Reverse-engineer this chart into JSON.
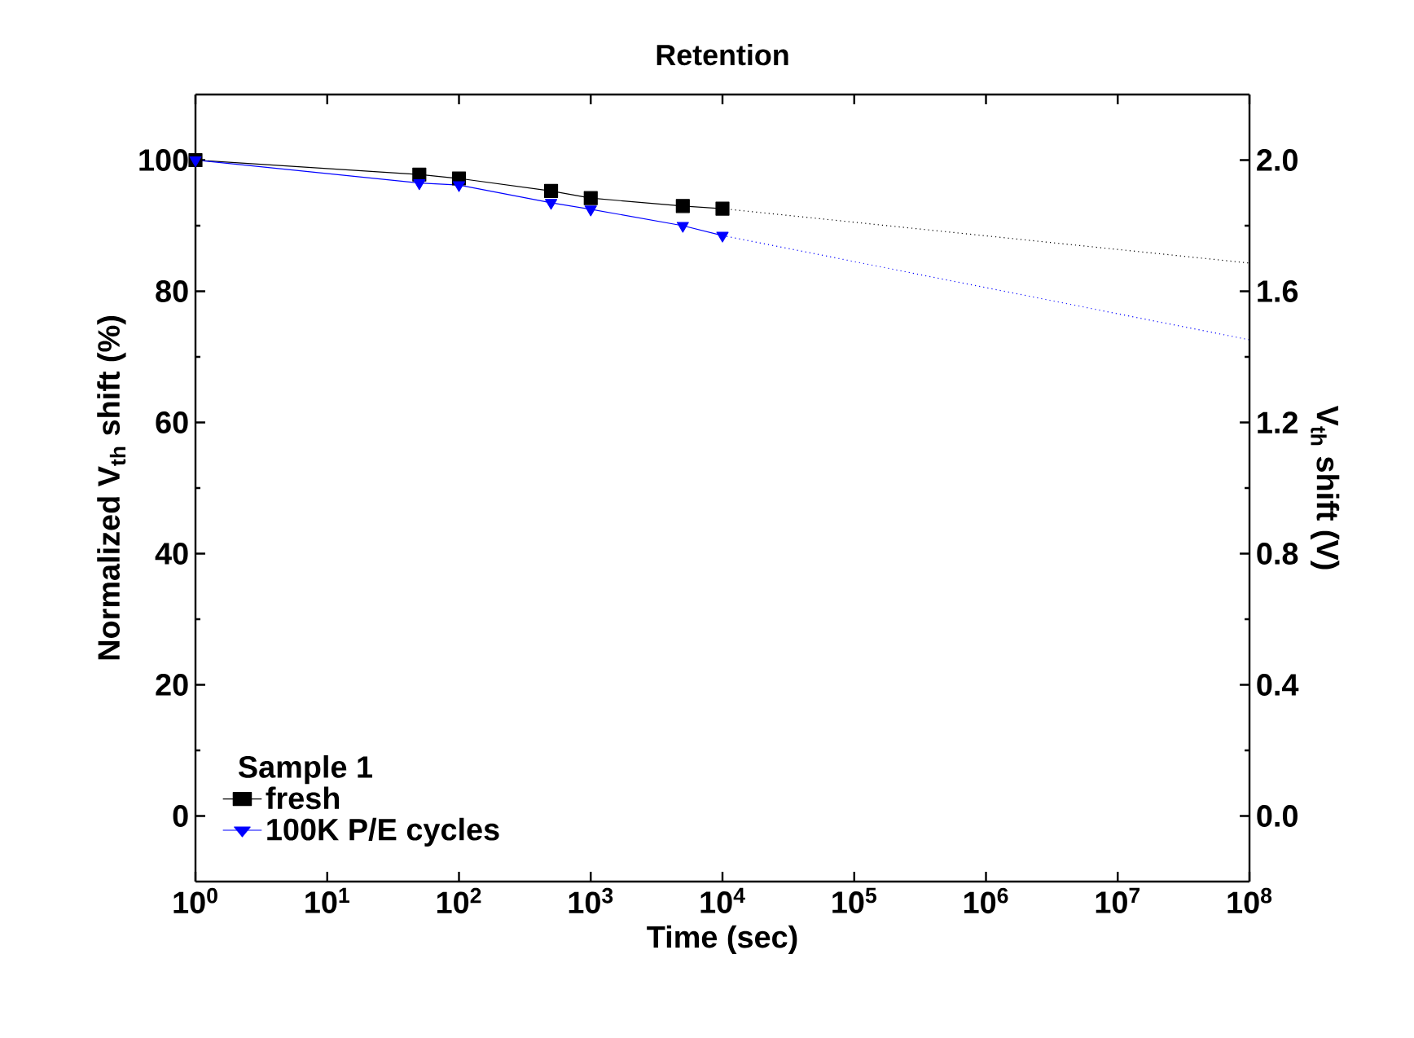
{
  "chart_data": {
    "type": "line",
    "title": "Retention",
    "xlabel": "Time (sec)",
    "ylabel": "Normalized V$_{th}$ shift (%)",
    "y2label": "V$_{th}$ shift (V)",
    "legend_title": "Sample 1",
    "log": "x",
    "legend": "bottom left",
    "grid": false,
    "xlim": [
      1,
      100000000
    ],
    "ylim": [
      -10,
      110
    ],
    "y2lim": [
      -0.2,
      2.2
    ],
    "xticks": [
      {
        "value": 1,
        "label": "10$^{0}$"
      },
      {
        "value": 10,
        "label": "10$^{1}$"
      },
      {
        "value": 100,
        "label": "10$^{2}$"
      },
      {
        "value": 1000,
        "label": "10$^{3}$"
      },
      {
        "value": 10000,
        "label": "10$^{4}$"
      },
      {
        "value": 100000,
        "label": "10$^{5}$"
      },
      {
        "value": 1000000,
        "label": "10$^{6}$"
      },
      {
        "value": 10000000,
        "label": "10$^{7}$"
      },
      {
        "value": 100000000,
        "label": "10$^{8}$"
      }
    ],
    "yticks": [
      0,
      20,
      40,
      60,
      80,
      100
    ],
    "y2ticks": [
      {
        "value": 0,
        "label": "0.0"
      },
      {
        "value": 0.4,
        "label": "0.4"
      },
      {
        "value": 0.8,
        "label": "0.8"
      },
      {
        "value": 1.2,
        "label": "1.2"
      },
      {
        "value": 1.6,
        "label": "1.6"
      },
      {
        "value": 2.0,
        "label": "2.0"
      }
    ],
    "series": [
      {
        "name": "fresh",
        "color": "#000000",
        "marker": "square",
        "line_style": "solid",
        "x": [
          1,
          50,
          100,
          500,
          1000,
          5000,
          10000
        ],
        "values": [
          100,
          97.8,
          97.2,
          95.3,
          94.2,
          93.0,
          92.6
        ]
      },
      {
        "name": "100K P/E cycles",
        "color": "#0000ff",
        "marker": "triangle",
        "line_style": "solid",
        "x": [
          1,
          50,
          100,
          500,
          1000,
          5000,
          10000
        ],
        "values": [
          100,
          96.5,
          96.2,
          93.5,
          92.5,
          90.0,
          88.5
        ]
      },
      {
        "color": "#000000",
        "marker": "none",
        "line_style": "dotted",
        "x": [
          10000,
          100000000
        ],
        "values": [
          92.6,
          84.3
        ]
      },
      {
        "color": "#0000ff",
        "marker": "none",
        "line_style": "dotted",
        "x": [
          10000,
          100000000
        ],
        "values": [
          88.5,
          72.6
        ]
      }
    ]
  }
}
